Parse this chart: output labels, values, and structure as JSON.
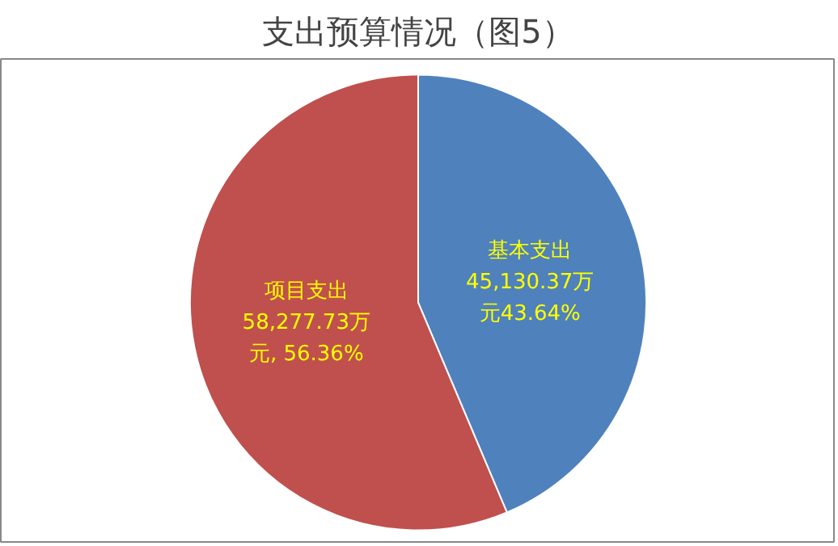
{
  "chart_data": {
    "type": "pie",
    "title": "支出预算情况（图5）",
    "categories": [
      "基本支出",
      "项目支出"
    ],
    "values": [
      45130.37,
      58277.73
    ],
    "colors": [
      "#4f81bd",
      "#c0504d"
    ],
    "value_labels": [
      "45,130.37万元43.64%",
      "58,277.73万元, 56.36%"
    ]
  }
}
